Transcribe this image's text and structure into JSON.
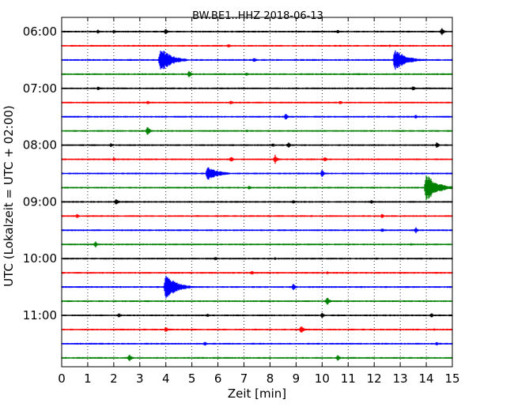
{
  "chart_data": {
    "type": "line",
    "title": "BW.BE1..HHZ 2018-06-13",
    "xlabel": "Zeit  [min]",
    "ylabel": "UTC (Lokalzeit = UTC + 02:00)",
    "xlim": [
      0,
      15
    ],
    "x_ticks": [
      "0",
      "1",
      "2",
      "3",
      "4",
      "5",
      "6",
      "7",
      "8",
      "9",
      "10",
      "11",
      "12",
      "13",
      "14",
      "15"
    ],
    "y_ticks": [
      "06:00",
      "07:00",
      "08:00",
      "09:00",
      "10:00",
      "11:00"
    ],
    "grid": "vertical dotted",
    "trace_interval_min": 15,
    "colors": [
      "#000000",
      "#ff0000",
      "#0000ff",
      "#008000"
    ],
    "series": [
      {
        "start": "06:00",
        "color": "#000000",
        "spikes": [
          [
            1.4,
            3
          ],
          [
            2,
            3
          ],
          [
            4,
            4
          ],
          [
            10.6,
            3
          ],
          [
            14.6,
            5
          ]
        ]
      },
      {
        "start": "06:15",
        "color": "#ff0000",
        "spikes": [
          [
            6.4,
            3
          ],
          [
            12.6,
            2
          ]
        ]
      },
      {
        "start": "06:30",
        "color": "#0000ff",
        "spikes": [
          [
            3.8,
            16
          ],
          [
            7.4,
            4
          ],
          [
            12.8,
            14
          ]
        ]
      },
      {
        "start": "06:45",
        "color": "#008000",
        "spikes": [
          [
            4.9,
            5
          ],
          [
            7.1,
            3
          ],
          [
            11.4,
            2
          ]
        ]
      },
      {
        "start": "07:00",
        "color": "#000000",
        "spikes": [
          [
            1.4,
            3
          ],
          [
            13.5,
            3
          ]
        ]
      },
      {
        "start": "07:15",
        "color": "#ff0000",
        "spikes": [
          [
            3.3,
            3
          ],
          [
            6.5,
            3
          ],
          [
            10.7,
            3
          ]
        ]
      },
      {
        "start": "07:30",
        "color": "#0000ff",
        "spikes": [
          [
            8.6,
            5
          ],
          [
            13.6,
            3
          ]
        ]
      },
      {
        "start": "07:45",
        "color": "#008000",
        "spikes": [
          [
            3.3,
            7
          ],
          [
            7.1,
            2
          ]
        ]
      },
      {
        "start": "08:00",
        "color": "#000000",
        "spikes": [
          [
            1.9,
            3
          ],
          [
            8.1,
            3
          ],
          [
            8.7,
            4
          ],
          [
            14.4,
            4
          ]
        ]
      },
      {
        "start": "08:15",
        "color": "#ff0000",
        "spikes": [
          [
            2,
            3
          ],
          [
            6.5,
            4
          ],
          [
            8.2,
            6
          ],
          [
            10.1,
            4
          ]
        ]
      },
      {
        "start": "08:30",
        "color": "#0000ff",
        "spikes": [
          [
            5.6,
            9
          ],
          [
            10,
            5
          ]
        ]
      },
      {
        "start": "08:45",
        "color": "#008000",
        "spikes": [
          [
            7.2,
            3
          ],
          [
            14,
            18
          ]
        ]
      },
      {
        "start": "09:00",
        "color": "#000000",
        "spikes": [
          [
            2.1,
            5
          ],
          [
            8.9,
            3
          ],
          [
            11.9,
            3
          ]
        ]
      },
      {
        "start": "09:15",
        "color": "#ff0000",
        "spikes": [
          [
            0.6,
            3
          ],
          [
            9.6,
            2
          ],
          [
            12.3,
            3
          ]
        ]
      },
      {
        "start": "09:30",
        "color": "#0000ff",
        "spikes": [
          [
            12.3,
            3
          ],
          [
            13.6,
            4
          ]
        ]
      },
      {
        "start": "09:45",
        "color": "#008000",
        "spikes": [
          [
            1.3,
            4
          ],
          [
            13.4,
            2
          ]
        ]
      },
      {
        "start": "10:00",
        "color": "#000000",
        "spikes": [
          [
            5.9,
            3
          ],
          [
            8.2,
            2
          ],
          [
            12.1,
            2
          ]
        ]
      },
      {
        "start": "10:15",
        "color": "#ff0000",
        "spikes": [
          [
            7.3,
            3
          ],
          [
            10.2,
            2
          ]
        ]
      },
      {
        "start": "10:30",
        "color": "#0000ff",
        "spikes": [
          [
            4,
            16
          ],
          [
            8.9,
            5
          ]
        ]
      },
      {
        "start": "10:45",
        "color": "#008000",
        "spikes": [
          [
            10.2,
            6
          ]
        ]
      },
      {
        "start": "11:00",
        "color": "#000000",
        "spikes": [
          [
            2.2,
            3
          ],
          [
            5.6,
            3
          ],
          [
            10,
            4
          ],
          [
            14.2,
            3
          ]
        ]
      },
      {
        "start": "11:15",
        "color": "#ff0000",
        "spikes": [
          [
            4,
            4
          ],
          [
            9.2,
            6
          ],
          [
            14.3,
            2
          ]
        ]
      },
      {
        "start": "11:30",
        "color": "#0000ff",
        "spikes": [
          [
            5.5,
            3
          ],
          [
            14.4,
            3
          ]
        ]
      },
      {
        "start": "11:45",
        "color": "#008000",
        "spikes": [
          [
            2.6,
            5
          ],
          [
            10.6,
            4
          ]
        ]
      }
    ]
  }
}
